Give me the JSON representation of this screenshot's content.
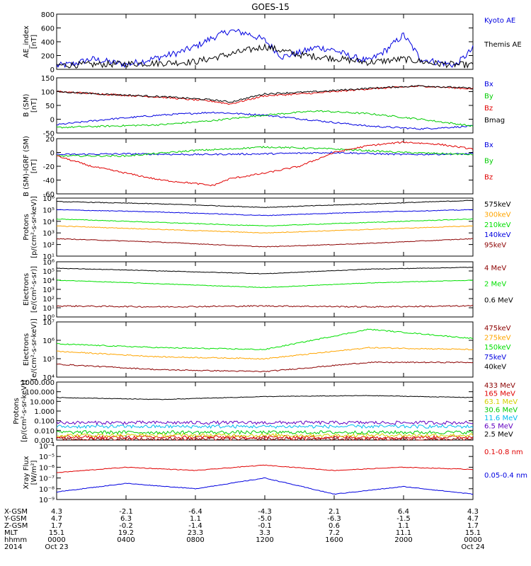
{
  "title": "GOES-15",
  "colors": {
    "black": "#000000",
    "blue": "#0000e0",
    "red": "#e00000",
    "green": "#00cc00",
    "orange": "#ffa500",
    "darkred": "#8b0000",
    "lightgreen": "#00e000",
    "cyan": "#00bbee",
    "purple": "#6000c0",
    "yellow": "#d4d000"
  },
  "chart_data": [
    {
      "type": "line",
      "ylabel": "AE_index\n[nT]",
      "ylim": [
        0,
        800
      ],
      "yticks": [
        "800",
        "600",
        "400",
        "200",
        "0"
      ],
      "series": [
        {
          "name": "Kyoto AE",
          "color": "#0000e0",
          "x_hours": [
            0,
            1,
            2,
            3,
            4,
            5,
            6,
            7,
            8,
            9,
            10,
            11,
            12,
            13,
            14,
            15,
            16,
            17,
            18,
            19,
            20,
            21,
            22,
            23,
            24
          ],
          "values": [
            50,
            80,
            150,
            110,
            70,
            120,
            180,
            240,
            330,
            460,
            560,
            520,
            420,
            180,
            240,
            320,
            280,
            180,
            120,
            280,
            500,
            150,
            100,
            60,
            300
          ]
        },
        {
          "name": "Themis AE",
          "color": "#000000",
          "x_hours": [
            0,
            2,
            4,
            6,
            8,
            10,
            12,
            14,
            16,
            18,
            20,
            22,
            24
          ],
          "values": [
            60,
            70,
            80,
            90,
            110,
            220,
            330,
            210,
            160,
            100,
            150,
            80,
            60
          ]
        }
      ]
    },
    {
      "type": "line",
      "ylabel": "B (SM)\n[nT]",
      "ylim": [
        -50,
        150
      ],
      "yticks": [
        "150",
        "100",
        "50",
        "0",
        "-50"
      ],
      "series": [
        {
          "name": "Bx",
          "color": "#0000e0",
          "x_hours": [
            0,
            3,
            6,
            9,
            12,
            15,
            18,
            21,
            24
          ],
          "values": [
            -20,
            0,
            15,
            25,
            15,
            -5,
            -25,
            -35,
            -25
          ]
        },
        {
          "name": "By",
          "color": "#00cc00",
          "x_hours": [
            0,
            3,
            6,
            9,
            12,
            15,
            18,
            21,
            24
          ],
          "values": [
            -30,
            -25,
            -20,
            -5,
            15,
            30,
            20,
            0,
            -25
          ]
        },
        {
          "name": "Bz",
          "color": "#e00000",
          "x_hours": [
            0,
            3,
            6,
            9,
            10,
            12,
            15,
            18,
            21,
            24
          ],
          "values": [
            100,
            90,
            80,
            65,
            55,
            85,
            95,
            110,
            120,
            110
          ]
        },
        {
          "name": "Bmag",
          "color": "#000000",
          "x_hours": [
            0,
            3,
            6,
            9,
            10,
            12,
            15,
            18,
            21,
            24
          ],
          "values": [
            100,
            90,
            82,
            70,
            62,
            92,
            100,
            112,
            121,
            112
          ]
        }
      ]
    },
    {
      "type": "line",
      "ylabel": "B (SM)-IGRF (SM)\n[nT]",
      "ylim": [
        -60,
        20
      ],
      "yticks": [
        "20",
        "0",
        "-20",
        "-40",
        "-60"
      ],
      "series": [
        {
          "name": "Bx",
          "color": "#0000e0",
          "x_hours": [
            0,
            4,
            8,
            12,
            16,
            20,
            24
          ],
          "values": [
            -3,
            -2,
            -3,
            -2,
            0,
            -3,
            -2
          ]
        },
        {
          "name": "By",
          "color": "#00cc00",
          "x_hours": [
            0,
            4,
            8,
            10,
            12,
            16,
            20,
            24
          ],
          "values": [
            -5,
            -5,
            3,
            5,
            8,
            5,
            0,
            -3
          ]
        },
        {
          "name": "Bz",
          "color": "#e00000",
          "x_hours": [
            0,
            2,
            4,
            6,
            8,
            9,
            10,
            12,
            14,
            16,
            18,
            20,
            22,
            24
          ],
          "values": [
            -5,
            -20,
            -30,
            -40,
            -45,
            -48,
            -38,
            -30,
            -20,
            0,
            10,
            15,
            12,
            5
          ]
        }
      ]
    },
    {
      "type": "line",
      "ylabel": "Protons\n[p/(cm²-s-sr-keV)]",
      "log_scale": true,
      "yticks": [
        "10⁶",
        "10⁵",
        "10⁴",
        "10³",
        "10²",
        "10¹"
      ],
      "series": [
        {
          "name": "575keV",
          "color": "#000000",
          "values_log10": [
            5.7,
            5.5,
            5.2,
            5.5,
            5.8
          ]
        },
        {
          "name": "300keV",
          "color": "#ffa500",
          "values_log10": [
            3.6,
            3.3,
            3.0,
            3.3,
            3.6
          ]
        },
        {
          "name": "210keV",
          "color": "#00e000",
          "values_log10": [
            4.2,
            3.9,
            3.6,
            3.9,
            4.2
          ]
        },
        {
          "name": "140keV",
          "color": "#0000e0",
          "values_log10": [
            5.0,
            4.8,
            4.5,
            4.8,
            5.0
          ]
        },
        {
          "name": "95keV",
          "color": "#8b0000",
          "values_log10": [
            2.5,
            2.2,
            1.8,
            2.1,
            2.5
          ]
        }
      ]
    },
    {
      "type": "line",
      "ylabel": "Electrons\n[e/(cm²-s-sr)]",
      "log_scale": true,
      "yticks": [
        "10⁶",
        "10⁵",
        "10⁴",
        "10³",
        "10²",
        "10¹",
        "10⁰"
      ],
      "series": [
        {
          "name": "4 MeV",
          "color": "#8b0000",
          "values_log10": [
            1.2,
            1.1,
            1.2,
            1.1,
            1.2
          ]
        },
        {
          "name": "2 MeV",
          "color": "#00e000",
          "values_log10": [
            4.0,
            3.6,
            3.2,
            3.7,
            4.0
          ]
        },
        {
          "name": "0.6 MeV",
          "color": "#000000",
          "values_log10": [
            5.3,
            5.0,
            4.7,
            5.2,
            5.4
          ]
        }
      ]
    },
    {
      "type": "line",
      "ylabel": "Electrons\n[e/(cm²-s-sr-keV)]",
      "log_scale": true,
      "yticks": [
        "10⁷",
        "10⁶",
        "10⁵",
        "10⁴"
      ],
      "series": [
        {
          "name": "475keV",
          "color": "#8b0000",
          "values_log10": [
            4.7,
            4.4,
            4.3,
            4.8,
            4.8
          ]
        },
        {
          "name": "275keV",
          "color": "#ffa500",
          "values_log10": [
            5.4,
            5.1,
            5.0,
            5.6,
            5.5
          ]
        },
        {
          "name": "150keV",
          "color": "#00e000",
          "values_log10": [
            5.8,
            5.6,
            5.5,
            6.6,
            6.1
          ]
        },
        {
          "name": "75keV",
          "color": "#0000e0",
          "values_log10": []
        },
        {
          "name": "40keV",
          "color": "#000000",
          "values_log10": []
        }
      ]
    },
    {
      "type": "line",
      "ylabel": "Protons\n[p/(cm²-s-sr-keV)]",
      "log_scale": true,
      "yticks": [
        "1000.000",
        "100.000",
        "10.000",
        "1.000",
        "0.100",
        "0.010",
        "0.001"
      ],
      "series": [
        {
          "name": "433 MeV",
          "color": "#8b0000",
          "values_log10": [
            -2.9,
            -2.9,
            -2.9,
            -2.9,
            -2.9
          ]
        },
        {
          "name": "165 MeV",
          "color": "#e00000",
          "values_log10": [
            -2.7,
            -2.7,
            -2.7,
            -2.7,
            -2.7
          ]
        },
        {
          "name": "63.1 MeV",
          "color": "#d4d000",
          "values_log10": [
            -2.5,
            -2.5,
            -2.5,
            -2.5,
            -2.5
          ]
        },
        {
          "name": "30.6 MeV",
          "color": "#00cc00",
          "values_log10": [
            -2.2,
            -2.2,
            -2.2,
            -2.2,
            -2.2
          ]
        },
        {
          "name": "11.6 MeV",
          "color": "#00bbee",
          "values_log10": [
            -1.6,
            -1.6,
            -1.6,
            -1.6,
            -1.6
          ]
        },
        {
          "name": "6.5 MeV",
          "color": "#6000c0",
          "values_log10": [
            -1.2,
            -1.2,
            -1.2,
            -1.2,
            -1.2
          ]
        },
        {
          "name": "2.5 MeV",
          "color": "#000000",
          "values_log10": [
            1.4,
            1.2,
            1.5,
            1.6,
            1.4
          ]
        }
      ]
    },
    {
      "type": "line",
      "ylabel": "Xray Flux\n[W/m²]",
      "log_scale": true,
      "yticks": [
        "10⁻⁴",
        "10⁻⁵",
        "10⁻⁶",
        "10⁻⁷",
        "10⁻⁸",
        "10⁻⁹"
      ],
      "series": [
        {
          "name": "0.1-0.8 nm",
          "color": "#e00000",
          "values_log10": [
            -6.5,
            -6.0,
            -6.3,
            -5.8,
            -6.3,
            -6.0,
            -6.2
          ]
        },
        {
          "name": "0.05-0.4 nm",
          "color": "#0000e0",
          "values_log10": [
            -8.3,
            -7.5,
            -8.0,
            -7.0,
            -8.5,
            -7.8,
            -8.5
          ]
        }
      ]
    }
  ],
  "x_axis": {
    "row_labels": [
      "X-GSM",
      "Y-GSM",
      "Z-GSM",
      "MLT",
      "hhmm",
      "2014"
    ],
    "columns": [
      [
        "4.3",
        "4.7",
        "1.7",
        "15.1",
        "0000",
        "Oct 23"
      ],
      [
        "-2.1",
        "6.3",
        "-0.2",
        "19.2",
        "0400",
        ""
      ],
      [
        "-6.4",
        "1.1",
        "-1.4",
        "23.3",
        "0800",
        ""
      ],
      [
        "-4.3",
        "-5.0",
        "-0.1",
        "3.3",
        "1200",
        ""
      ],
      [
        "2.1",
        "-6.3",
        "0.6",
        "7.2",
        "1600",
        ""
      ],
      [
        "6.4",
        "-1.5",
        "1.1",
        "11.1",
        "2000",
        ""
      ],
      [
        "4.3",
        "4.7",
        "1.7",
        "15.1",
        "0000",
        "Oct 24"
      ]
    ]
  }
}
